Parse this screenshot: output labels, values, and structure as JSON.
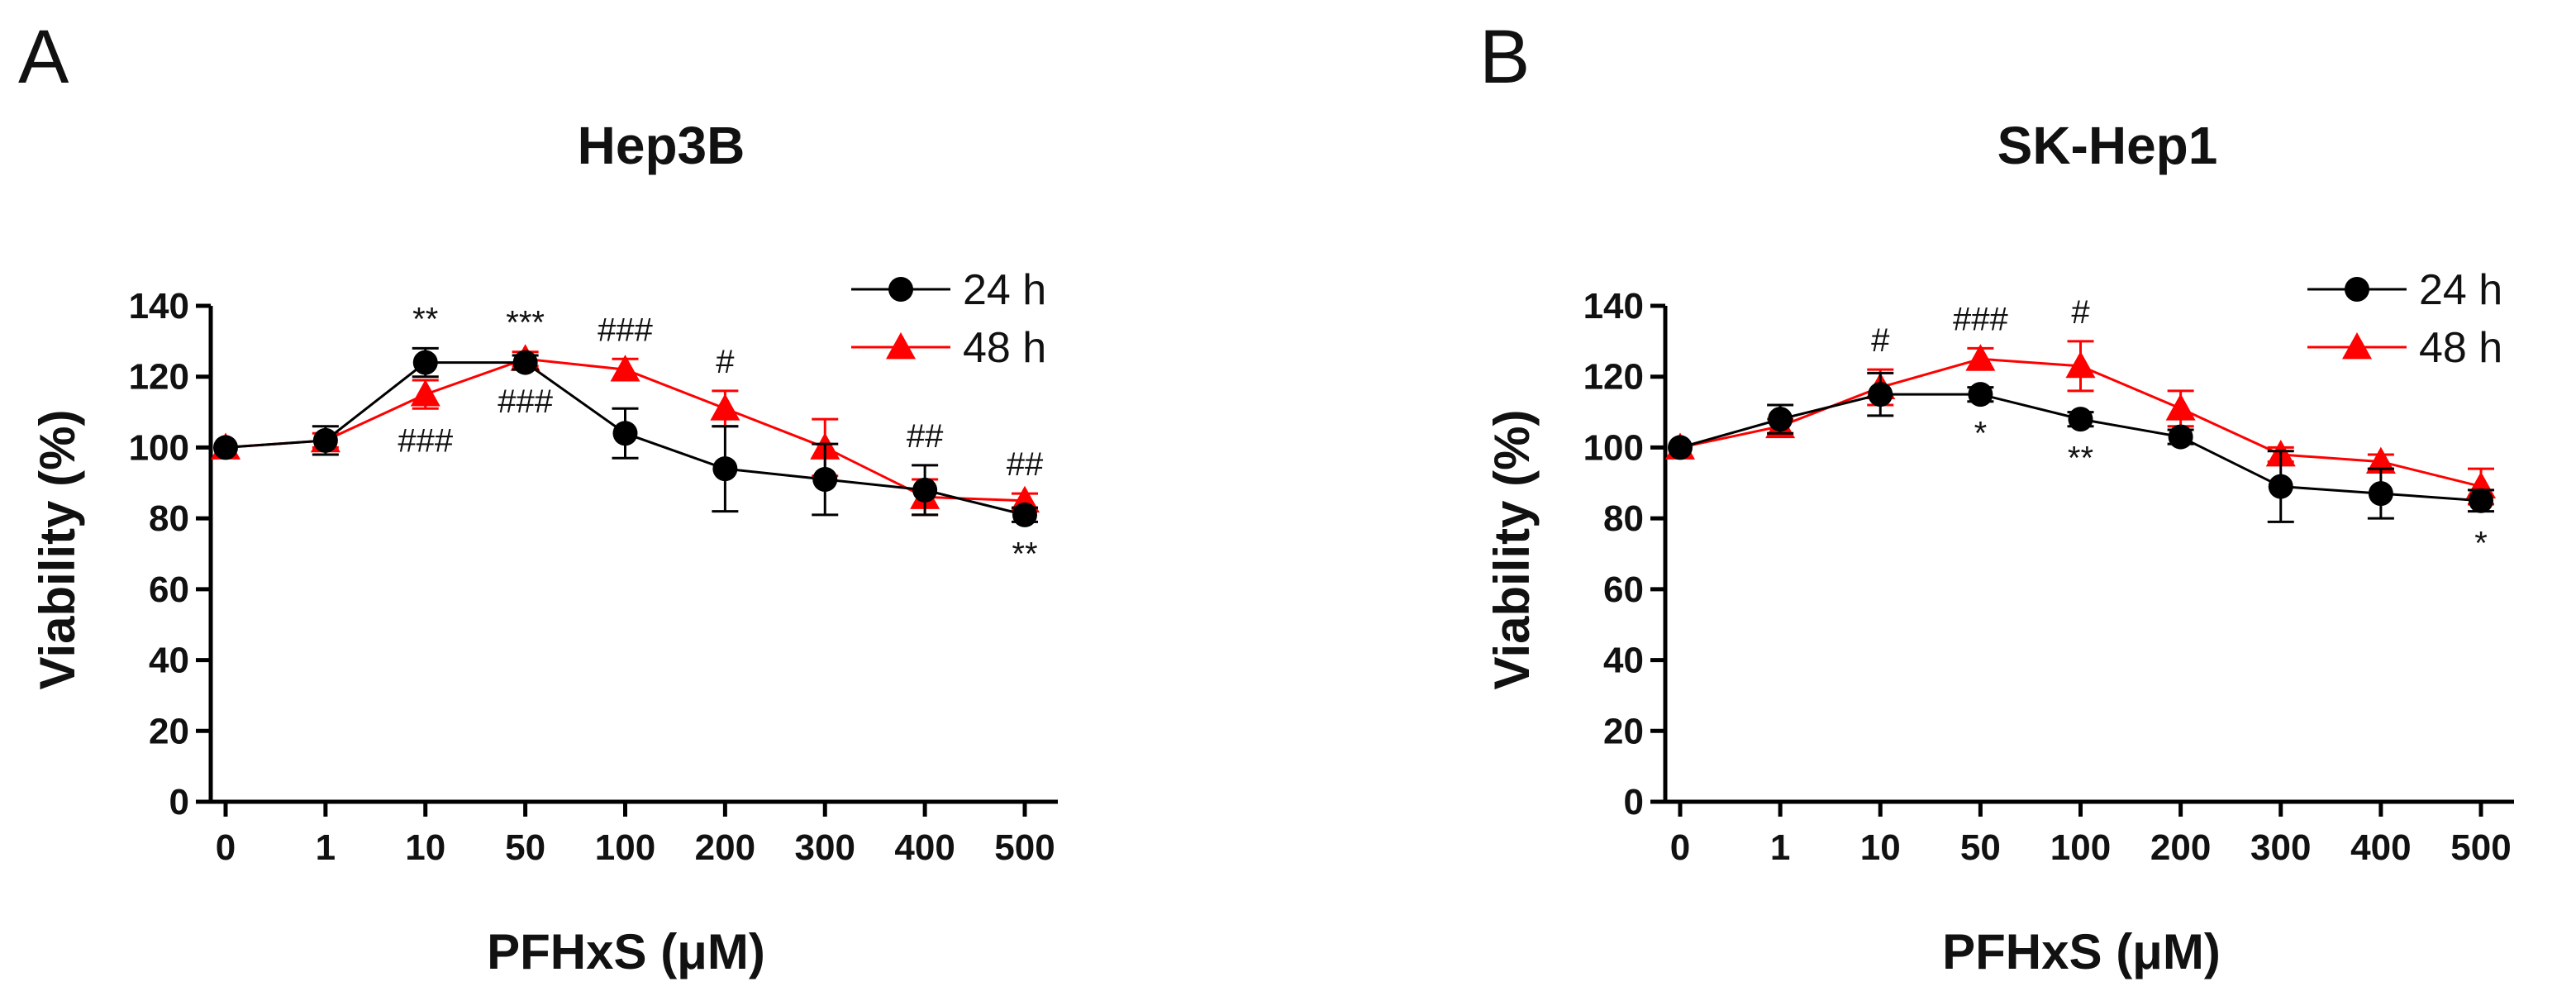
{
  "figure": {
    "panel_labels": [
      "A",
      "B"
    ]
  },
  "chart_data": [
    {
      "type": "line",
      "panel": "A",
      "title": "Hep3B",
      "xlabel": "PFHxS (μM)",
      "ylabel": "Viability (%)",
      "categories": [
        "0",
        "1",
        "10",
        "50",
        "100",
        "200",
        "300",
        "400",
        "500"
      ],
      "ylim": [
        0,
        140
      ],
      "yticks": [
        0,
        20,
        40,
        60,
        80,
        100,
        120,
        140
      ],
      "legend_position": "top-right",
      "series": [
        {
          "name": "24 h",
          "color": "#000000",
          "marker": "circle",
          "values": [
            100,
            102,
            124,
            124,
            104,
            94,
            91,
            88,
            81
          ],
          "errors": [
            0,
            4,
            4,
            2,
            7,
            12,
            10,
            7,
            2
          ]
        },
        {
          "name": "48 h",
          "color": "#ff0000",
          "marker": "triangle",
          "values": [
            100,
            102,
            115,
            125,
            122,
            111,
            100,
            86,
            85
          ],
          "errors": [
            0,
            2,
            4,
            2,
            3,
            5,
            8,
            5,
            2
          ]
        }
      ],
      "annotations": [
        {
          "text": "**",
          "category_index": 2,
          "position": "above"
        },
        {
          "text": "###",
          "category_index": 2,
          "position": "below"
        },
        {
          "text": "***",
          "category_index": 3,
          "position": "above"
        },
        {
          "text": "###",
          "category_index": 3,
          "position": "below"
        },
        {
          "text": "###",
          "category_index": 4,
          "position": "above"
        },
        {
          "text": "#",
          "category_index": 5,
          "position": "above"
        },
        {
          "text": "##",
          "category_index": 7,
          "position": "above"
        },
        {
          "text": "##",
          "category_index": 8,
          "position": "above"
        },
        {
          "text": "**",
          "category_index": 8,
          "position": "below"
        }
      ]
    },
    {
      "type": "line",
      "panel": "B",
      "title": "SK-Hep1",
      "xlabel": "PFHxS (μM)",
      "ylabel": "Viability (%)",
      "categories": [
        "0",
        "1",
        "10",
        "50",
        "100",
        "200",
        "300",
        "400",
        "500"
      ],
      "ylim": [
        0,
        140
      ],
      "yticks": [
        0,
        20,
        40,
        60,
        80,
        100,
        120,
        140
      ],
      "legend_position": "top-right",
      "series": [
        {
          "name": "24 h",
          "color": "#000000",
          "marker": "circle",
          "values": [
            100,
            108,
            115,
            115,
            108,
            103,
            89,
            87,
            85
          ],
          "errors": [
            0,
            4,
            6,
            2,
            2,
            2,
            10,
            7,
            3
          ]
        },
        {
          "name": "48 h",
          "color": "#ff0000",
          "marker": "triangle",
          "values": [
            100,
            106,
            117,
            125,
            123,
            111,
            98,
            96,
            89
          ],
          "errors": [
            0,
            2,
            5,
            3,
            7,
            5,
            2,
            2,
            5
          ]
        }
      ],
      "annotations": [
        {
          "text": "#",
          "category_index": 2,
          "position": "above"
        },
        {
          "text": "###",
          "category_index": 3,
          "position": "above"
        },
        {
          "text": "*",
          "category_index": 3,
          "position": "below"
        },
        {
          "text": "#",
          "category_index": 4,
          "position": "above"
        },
        {
          "text": "**",
          "category_index": 4,
          "position": "below"
        },
        {
          "text": "*",
          "category_index": 8,
          "position": "below"
        }
      ]
    }
  ]
}
